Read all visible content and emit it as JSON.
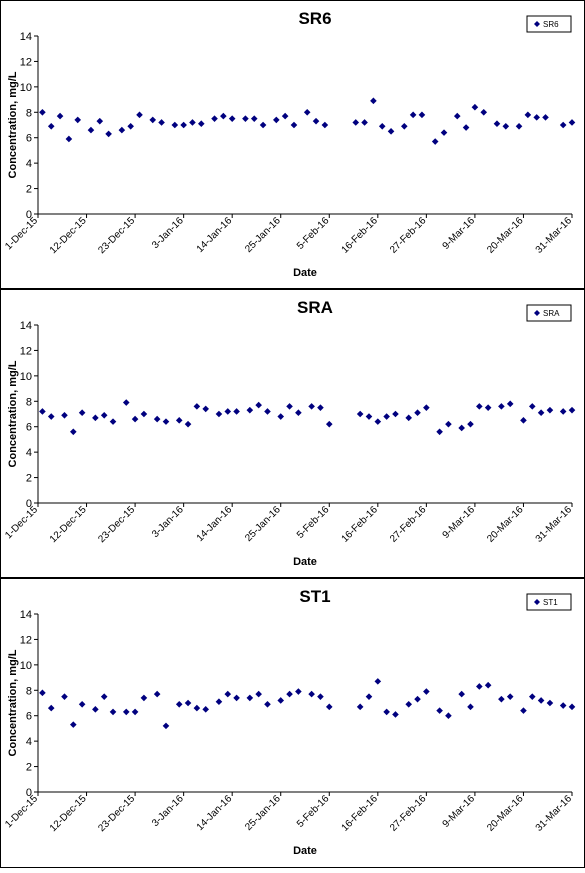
{
  "style": {
    "marker_color": "#00007f",
    "axis_color": "#000000",
    "background": "#ffffff"
  },
  "chart_data": [
    {
      "type": "scatter",
      "title": "SR6",
      "xlabel": "Date",
      "ylabel": "Concentration, mg/L",
      "legend": {
        "label": "SR6",
        "position": "top-right",
        "marker": "diamond"
      },
      "ylim": [
        0,
        14
      ],
      "yticks": [
        0,
        2,
        4,
        6,
        8,
        10,
        12,
        14
      ],
      "xlim": [
        "2015-12-01",
        "2016-03-31"
      ],
      "xticks": [
        "1-Dec-15",
        "12-Dec-15",
        "23-Dec-15",
        "3-Jan-16",
        "14-Jan-16",
        "25-Jan-16",
        "5-Feb-16",
        "16-Feb-16",
        "27-Feb-16",
        "9-Mar-16",
        "20-Mar-16",
        "31-Mar-16"
      ],
      "points": [
        [
          "2015-12-02",
          8.0
        ],
        [
          "2015-12-04",
          6.9
        ],
        [
          "2015-12-06",
          7.7
        ],
        [
          "2015-12-08",
          5.9
        ],
        [
          "2015-12-10",
          7.4
        ],
        [
          "2015-12-13",
          6.6
        ],
        [
          "2015-12-15",
          7.3
        ],
        [
          "2015-12-17",
          6.3
        ],
        [
          "2015-12-20",
          6.6
        ],
        [
          "2015-12-22",
          6.9
        ],
        [
          "2015-12-24",
          7.8
        ],
        [
          "2015-12-27",
          7.4
        ],
        [
          "2015-12-29",
          7.2
        ],
        [
          "2016-01-01",
          7.0
        ],
        [
          "2016-01-03",
          7.0
        ],
        [
          "2016-01-05",
          7.2
        ],
        [
          "2016-01-07",
          7.1
        ],
        [
          "2016-01-10",
          7.5
        ],
        [
          "2016-01-12",
          7.7
        ],
        [
          "2016-01-14",
          7.5
        ],
        [
          "2016-01-17",
          7.5
        ],
        [
          "2016-01-19",
          7.5
        ],
        [
          "2016-01-21",
          7.0
        ],
        [
          "2016-01-24",
          7.4
        ],
        [
          "2016-01-26",
          7.7
        ],
        [
          "2016-01-28",
          7.0
        ],
        [
          "2016-01-31",
          8.0
        ],
        [
          "2016-02-02",
          7.3
        ],
        [
          "2016-02-04",
          7.0
        ],
        [
          "2016-02-11",
          7.2
        ],
        [
          "2016-02-13",
          7.2
        ],
        [
          "2016-02-15",
          8.9
        ],
        [
          "2016-02-17",
          6.9
        ],
        [
          "2016-02-19",
          6.5
        ],
        [
          "2016-02-22",
          6.9
        ],
        [
          "2016-02-24",
          7.8
        ],
        [
          "2016-02-26",
          7.8
        ],
        [
          "2016-02-29",
          5.7
        ],
        [
          "2016-03-02",
          6.4
        ],
        [
          "2016-03-05",
          7.7
        ],
        [
          "2016-03-07",
          6.8
        ],
        [
          "2016-03-09",
          8.4
        ],
        [
          "2016-03-11",
          8.0
        ],
        [
          "2016-03-14",
          7.1
        ],
        [
          "2016-03-16",
          6.9
        ],
        [
          "2016-03-19",
          6.9
        ],
        [
          "2016-03-21",
          7.8
        ],
        [
          "2016-03-23",
          7.6
        ],
        [
          "2016-03-25",
          7.6
        ],
        [
          "2016-03-29",
          7.0
        ],
        [
          "2016-03-31",
          7.2
        ]
      ],
      "grid": false
    },
    {
      "type": "scatter",
      "title": "SRA",
      "xlabel": "Date",
      "ylabel": "Concentration, mg/L",
      "legend": {
        "label": "SRA",
        "position": "top-right",
        "marker": "diamond"
      },
      "ylim": [
        0,
        14
      ],
      "yticks": [
        0,
        2,
        4,
        6,
        8,
        10,
        12,
        14
      ],
      "xlim": [
        "2015-12-01",
        "2016-03-31"
      ],
      "xticks": [
        "1-Dec-15",
        "12-Dec-15",
        "23-Dec-15",
        "3-Jan-16",
        "14-Jan-16",
        "25-Jan-16",
        "5-Feb-16",
        "16-Feb-16",
        "27-Feb-16",
        "9-Mar-16",
        "20-Mar-16",
        "31-Mar-16"
      ],
      "points": [
        [
          "2015-12-02",
          7.2
        ],
        [
          "2015-12-04",
          6.8
        ],
        [
          "2015-12-07",
          6.9
        ],
        [
          "2015-12-09",
          5.6
        ],
        [
          "2015-12-11",
          7.1
        ],
        [
          "2015-12-14",
          6.7
        ],
        [
          "2015-12-16",
          6.9
        ],
        [
          "2015-12-18",
          6.4
        ],
        [
          "2015-12-21",
          7.9
        ],
        [
          "2015-12-23",
          6.6
        ],
        [
          "2015-12-25",
          7.0
        ],
        [
          "2015-12-28",
          6.6
        ],
        [
          "2015-12-30",
          6.4
        ],
        [
          "2016-01-02",
          6.5
        ],
        [
          "2016-01-04",
          6.2
        ],
        [
          "2016-01-06",
          7.6
        ],
        [
          "2016-01-08",
          7.4
        ],
        [
          "2016-01-11",
          7.0
        ],
        [
          "2016-01-13",
          7.2
        ],
        [
          "2016-01-15",
          7.2
        ],
        [
          "2016-01-18",
          7.3
        ],
        [
          "2016-01-20",
          7.7
        ],
        [
          "2016-01-22",
          7.2
        ],
        [
          "2016-01-25",
          6.8
        ],
        [
          "2016-01-27",
          7.6
        ],
        [
          "2016-01-29",
          7.1
        ],
        [
          "2016-02-01",
          7.6
        ],
        [
          "2016-02-03",
          7.5
        ],
        [
          "2016-02-05",
          6.2
        ],
        [
          "2016-02-12",
          7.0
        ],
        [
          "2016-02-14",
          6.8
        ],
        [
          "2016-02-16",
          6.4
        ],
        [
          "2016-02-18",
          6.8
        ],
        [
          "2016-02-20",
          7.0
        ],
        [
          "2016-02-23",
          6.7
        ],
        [
          "2016-02-25",
          7.1
        ],
        [
          "2016-02-27",
          7.5
        ],
        [
          "2016-03-01",
          5.6
        ],
        [
          "2016-03-03",
          6.2
        ],
        [
          "2016-03-06",
          5.9
        ],
        [
          "2016-03-08",
          6.2
        ],
        [
          "2016-03-10",
          7.6
        ],
        [
          "2016-03-12",
          7.5
        ],
        [
          "2016-03-15",
          7.6
        ],
        [
          "2016-03-17",
          7.8
        ],
        [
          "2016-03-20",
          6.5
        ],
        [
          "2016-03-22",
          7.6
        ],
        [
          "2016-03-24",
          7.1
        ],
        [
          "2016-03-26",
          7.3
        ],
        [
          "2016-03-29",
          7.2
        ],
        [
          "2016-03-31",
          7.3
        ]
      ],
      "grid": false
    },
    {
      "type": "scatter",
      "title": "ST1",
      "xlabel": "Date",
      "ylabel": "Concentration, mg/L",
      "legend": {
        "label": "ST1",
        "position": "top-right",
        "marker": "diamond"
      },
      "ylim": [
        0,
        14
      ],
      "yticks": [
        0,
        2,
        4,
        6,
        8,
        10,
        12,
        14
      ],
      "xlim": [
        "2015-12-01",
        "2016-03-31"
      ],
      "xticks": [
        "1-Dec-15",
        "12-Dec-15",
        "23-Dec-15",
        "3-Jan-16",
        "14-Jan-16",
        "25-Jan-16",
        "5-Feb-16",
        "16-Feb-16",
        "27-Feb-16",
        "9-Mar-16",
        "20-Mar-16",
        "31-Mar-16"
      ],
      "points": [
        [
          "2015-12-02",
          7.8
        ],
        [
          "2015-12-04",
          6.6
        ],
        [
          "2015-12-07",
          7.5
        ],
        [
          "2015-12-09",
          5.3
        ],
        [
          "2015-12-11",
          6.9
        ],
        [
          "2015-12-14",
          6.5
        ],
        [
          "2015-12-16",
          7.5
        ],
        [
          "2015-12-18",
          6.3
        ],
        [
          "2015-12-21",
          6.3
        ],
        [
          "2015-12-23",
          6.3
        ],
        [
          "2015-12-25",
          7.4
        ],
        [
          "2015-12-28",
          7.7
        ],
        [
          "2015-12-30",
          5.2
        ],
        [
          "2016-01-02",
          6.9
        ],
        [
          "2016-01-04",
          7.0
        ],
        [
          "2016-01-06",
          6.6
        ],
        [
          "2016-01-08",
          6.5
        ],
        [
          "2016-01-11",
          7.1
        ],
        [
          "2016-01-13",
          7.7
        ],
        [
          "2016-01-15",
          7.4
        ],
        [
          "2016-01-18",
          7.4
        ],
        [
          "2016-01-20",
          7.7
        ],
        [
          "2016-01-22",
          6.9
        ],
        [
          "2016-01-25",
          7.2
        ],
        [
          "2016-01-27",
          7.7
        ],
        [
          "2016-01-29",
          7.9
        ],
        [
          "2016-02-01",
          7.7
        ],
        [
          "2016-02-03",
          7.5
        ],
        [
          "2016-02-05",
          6.7
        ],
        [
          "2016-02-12",
          6.7
        ],
        [
          "2016-02-14",
          7.5
        ],
        [
          "2016-02-16",
          8.7
        ],
        [
          "2016-02-18",
          6.3
        ],
        [
          "2016-02-20",
          6.1
        ],
        [
          "2016-02-23",
          6.9
        ],
        [
          "2016-02-25",
          7.3
        ],
        [
          "2016-02-27",
          7.9
        ],
        [
          "2016-03-01",
          6.4
        ],
        [
          "2016-03-03",
          6.0
        ],
        [
          "2016-03-06",
          7.7
        ],
        [
          "2016-03-08",
          6.7
        ],
        [
          "2016-03-10",
          8.3
        ],
        [
          "2016-03-12",
          8.4
        ],
        [
          "2016-03-15",
          7.3
        ],
        [
          "2016-03-17",
          7.5
        ],
        [
          "2016-03-20",
          6.4
        ],
        [
          "2016-03-22",
          7.5
        ],
        [
          "2016-03-24",
          7.2
        ],
        [
          "2016-03-26",
          7.0
        ],
        [
          "2016-03-29",
          6.8
        ],
        [
          "2016-03-31",
          6.7
        ]
      ],
      "grid": false
    }
  ]
}
